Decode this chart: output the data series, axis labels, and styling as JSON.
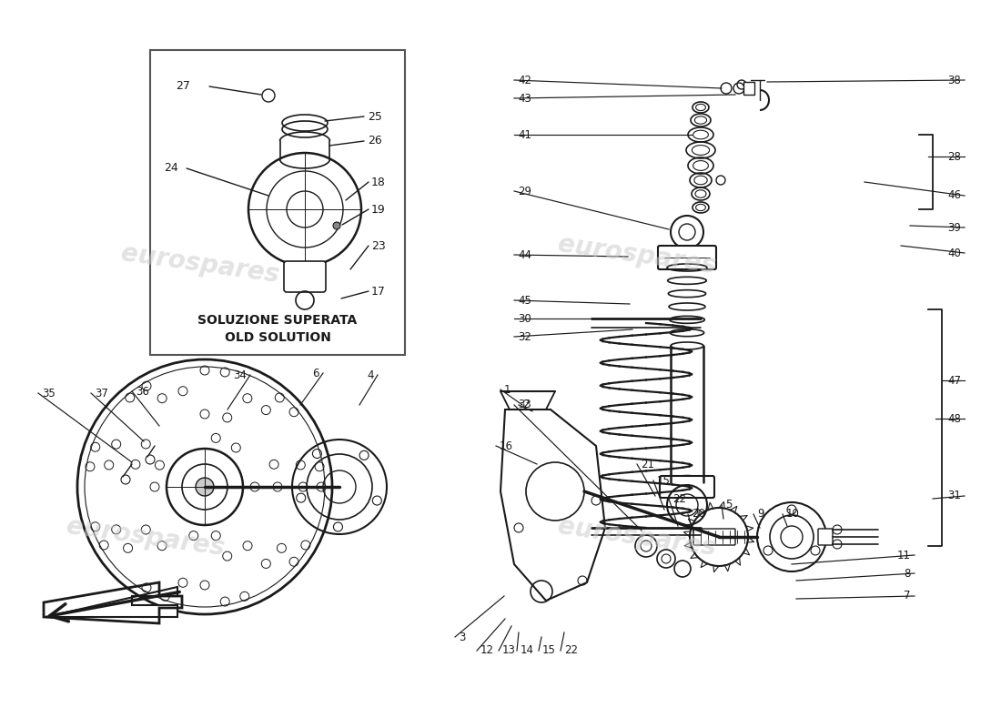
{
  "bg_color": "#ffffff",
  "fg_color": "#1a1a1a",
  "fig_width": 11.0,
  "fig_height": 8.0,
  "dpi": 100,
  "box_label_line1": "SOLUZIONE SUPERATA",
  "box_label_line2": "OLD SOLUTION",
  "watermark_text": "eurospares"
}
